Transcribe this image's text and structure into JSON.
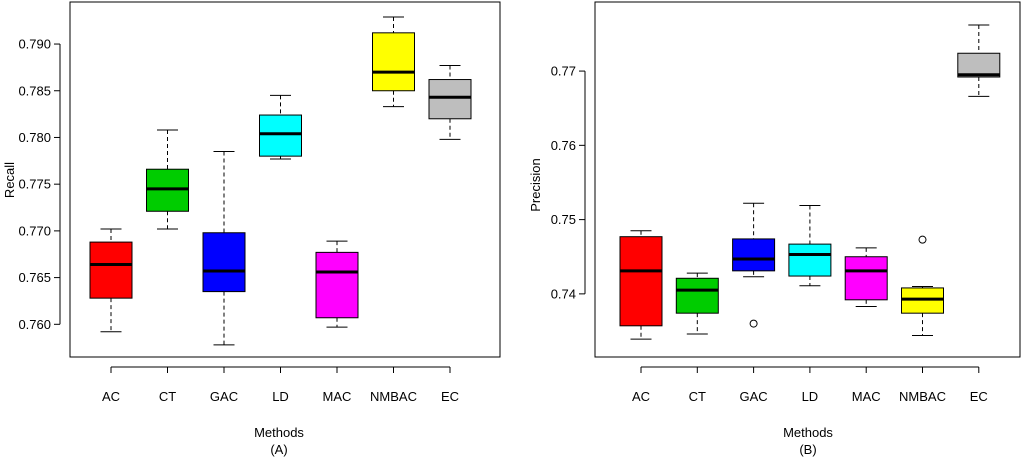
{
  "chart_data": [
    {
      "type": "boxplot",
      "panel_id": "A",
      "title": "",
      "xlabel": "Methods",
      "caption": "(A)",
      "ylabel": "Recall",
      "ylim": [
        0.7565,
        0.7945
      ],
      "yticks": [
        0.76,
        0.765,
        0.77,
        0.775,
        0.78,
        0.785,
        0.79
      ],
      "ytick_labels": [
        "0.760",
        "0.765",
        "0.770",
        "0.775",
        "0.780",
        "0.785",
        "0.790"
      ],
      "categories": [
        "AC",
        "CT",
        "GAC",
        "LD",
        "MAC",
        "NMBAC",
        "EC"
      ],
      "boxes": [
        {
          "name": "AC",
          "color": "#FF0000",
          "whisker_low": 0.7592,
          "q1": 0.7628,
          "median": 0.7664,
          "q3": 0.7688,
          "whisker_high": 0.7702,
          "outliers": []
        },
        {
          "name": "CT",
          "color": "#00CC00",
          "whisker_low": 0.7702,
          "q1": 0.7721,
          "median": 0.7745,
          "q3": 0.7766,
          "whisker_high": 0.7808,
          "outliers": []
        },
        {
          "name": "GAC",
          "color": "#0000FF",
          "whisker_low": 0.7578,
          "q1": 0.7635,
          "median": 0.7657,
          "q3": 0.7698,
          "whisker_high": 0.7785,
          "outliers": []
        },
        {
          "name": "LD",
          "color": "#00FFFF",
          "whisker_low": 0.7777,
          "q1": 0.778,
          "median": 0.7804,
          "q3": 0.7824,
          "whisker_high": 0.7845,
          "outliers": []
        },
        {
          "name": "MAC",
          "color": "#FF00FF",
          "whisker_low": 0.7597,
          "q1": 0.7607,
          "median": 0.7656,
          "q3": 0.7677,
          "whisker_high": 0.7689,
          "outliers": []
        },
        {
          "name": "NMBAC",
          "color": "#FFFF00",
          "whisker_low": 0.7833,
          "q1": 0.785,
          "median": 0.787,
          "q3": 0.7912,
          "whisker_high": 0.7929,
          "outliers": []
        },
        {
          "name": "EC",
          "color": "#BEBEBE",
          "whisker_low": 0.7798,
          "q1": 0.782,
          "median": 0.7843,
          "q3": 0.7862,
          "whisker_high": 0.7877,
          "outliers": []
        }
      ]
    },
    {
      "type": "boxplot",
      "panel_id": "B",
      "title": "",
      "xlabel": "Methods",
      "caption": "(B)",
      "ylabel": "Precision",
      "ylim": [
        0.7315,
        0.7793
      ],
      "yticks": [
        0.74,
        0.75,
        0.76,
        0.77
      ],
      "ytick_labels": [
        "0.74",
        "0.75",
        "0.76",
        "0.77"
      ],
      "categories": [
        "AC",
        "CT",
        "GAC",
        "LD",
        "MAC",
        "NMBAC",
        "EC"
      ],
      "boxes": [
        {
          "name": "AC",
          "color": "#FF0000",
          "whisker_low": 0.7339,
          "q1": 0.7357,
          "median": 0.7431,
          "q3": 0.7477,
          "whisker_high": 0.7485,
          "outliers": []
        },
        {
          "name": "CT",
          "color": "#00CC00",
          "whisker_low": 0.7346,
          "q1": 0.7374,
          "median": 0.7405,
          "q3": 0.7421,
          "whisker_high": 0.7428,
          "outliers": []
        },
        {
          "name": "GAC",
          "color": "#0000FF",
          "whisker_low": 0.7423,
          "q1": 0.7431,
          "median": 0.7447,
          "q3": 0.7474,
          "whisker_high": 0.7522,
          "outliers": [
            0.736
          ]
        },
        {
          "name": "LD",
          "color": "#00FFFF",
          "whisker_low": 0.7411,
          "q1": 0.7424,
          "median": 0.7453,
          "q3": 0.7467,
          "whisker_high": 0.7519,
          "outliers": []
        },
        {
          "name": "MAC",
          "color": "#FF00FF",
          "whisker_low": 0.7383,
          "q1": 0.7392,
          "median": 0.7431,
          "q3": 0.745,
          "whisker_high": 0.7462,
          "outliers": []
        },
        {
          "name": "NMBAC",
          "color": "#FFFF00",
          "whisker_low": 0.7344,
          "q1": 0.7374,
          "median": 0.7393,
          "q3": 0.7408,
          "whisker_high": 0.741,
          "outliers": [
            0.7473
          ]
        },
        {
          "name": "EC",
          "color": "#BEBEBE",
          "whisker_low": 0.7666,
          "q1": 0.7692,
          "median": 0.7695,
          "q3": 0.7724,
          "whisker_high": 0.7762,
          "outliers": []
        }
      ]
    }
  ]
}
